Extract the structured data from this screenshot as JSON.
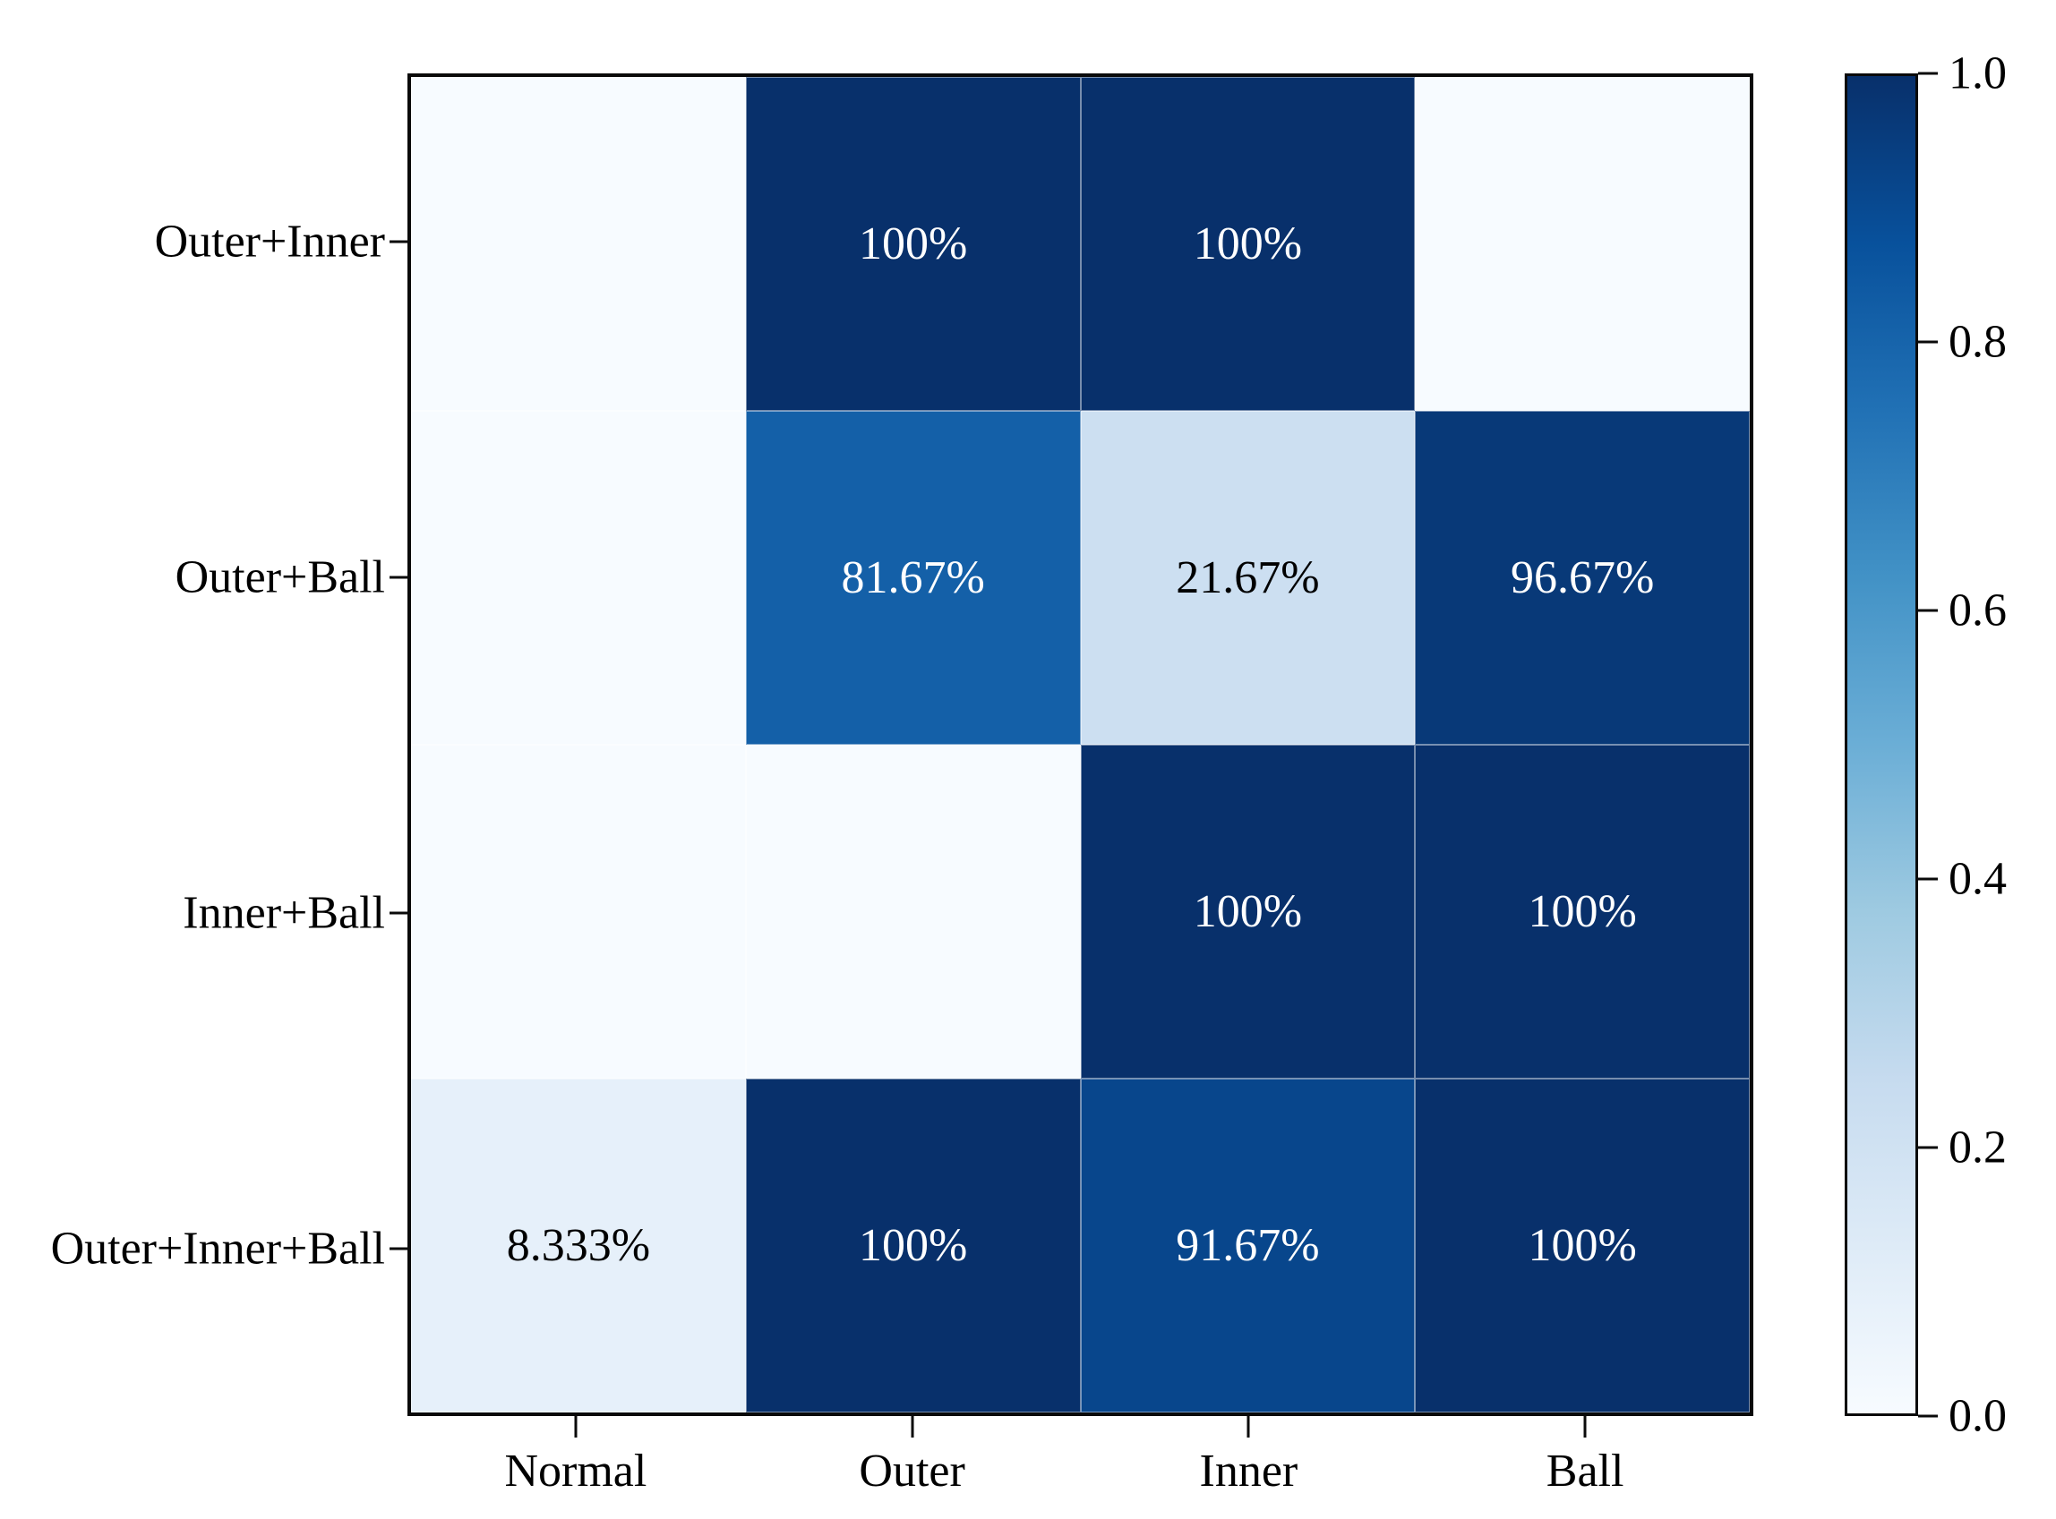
{
  "chart_data": {
    "type": "heatmap",
    "title": "",
    "xlabel": "",
    "ylabel": "",
    "rows": [
      "Outer+Inner",
      "Outer+Ball",
      "Inner+Ball",
      "Outer+Inner+Ball"
    ],
    "columns": [
      "Normal",
      "Outer",
      "Inner",
      "Ball"
    ],
    "values": [
      [
        0,
        1.0,
        1.0,
        0
      ],
      [
        0,
        0.8167,
        0.2167,
        0.9667
      ],
      [
        0,
        0,
        1.0,
        1.0
      ],
      [
        0.08333,
        1.0,
        0.9167,
        1.0
      ]
    ],
    "cell_labels": [
      [
        "",
        "100%",
        "100%",
        ""
      ],
      [
        "",
        "81.67%",
        "21.67%",
        "96.67%"
      ],
      [
        "",
        "",
        "100%",
        "100%"
      ],
      [
        "8.333%",
        "100%",
        "91.67%",
        "100%"
      ]
    ],
    "label_threshold": 0.5,
    "label_color_dark_cells": "#ffffff",
    "label_color_light_cells": "#000000",
    "colormap": {
      "name": "Blues",
      "anchors": [
        "#f7fbff",
        "#deebf7",
        "#c6dbef",
        "#9ecae1",
        "#6baed6",
        "#4292c6",
        "#2171b5",
        "#08519c",
        "#08306b"
      ]
    },
    "colorbar": {
      "min": 0.0,
      "max": 1.0,
      "ticks": [
        "1.0",
        "0.8",
        "0.6",
        "0.4",
        "0.2",
        "0.0"
      ],
      "position": "right"
    },
    "grid": "thin white cell separators",
    "frame_color": "#0a0a0a"
  }
}
